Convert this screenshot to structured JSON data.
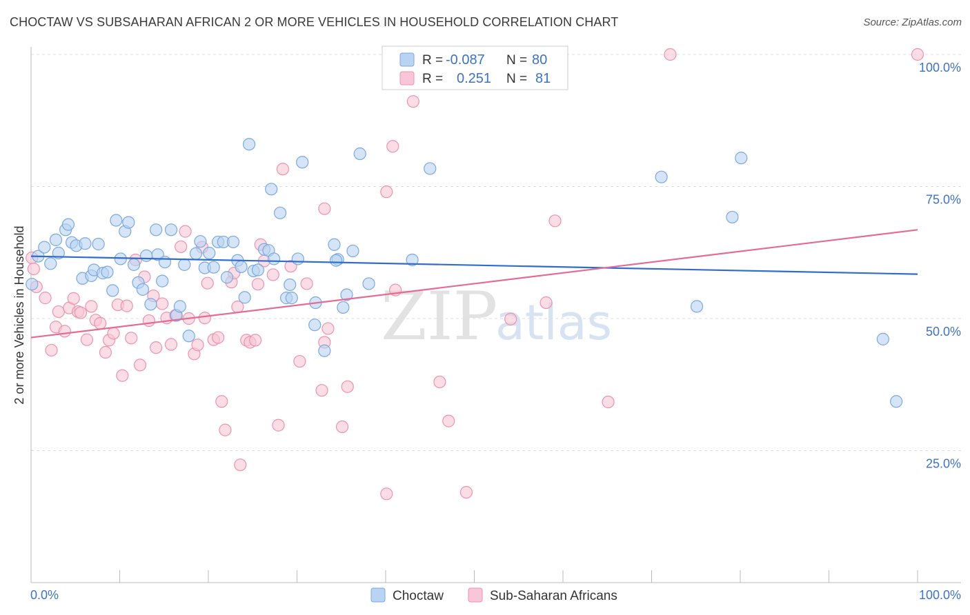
{
  "title": "CHOCTAW VS SUBSAHARAN AFRICAN 2 OR MORE VEHICLES IN HOUSEHOLD CORRELATION CHART",
  "source": "Source: ZipAtlas.com",
  "watermark": {
    "zip": "ZIP",
    "atlas": "atlas"
  },
  "colors": {
    "choctaw_fill": "#b9d3f2",
    "choctaw_stroke": "#7aa8df",
    "choctaw_line": "#2f6ccf",
    "ssa_fill": "#f8c6d6",
    "ssa_stroke": "#ec92b0",
    "ssa_line": "#e46b94",
    "grid": "#dddddd",
    "tick_text": "#3d72c4"
  },
  "legend_top": {
    "rows": [
      {
        "r_label": "R =",
        "r_value": "-0.087",
        "n_label": "N =",
        "n_value": "80"
      },
      {
        "r_label": "R =",
        "r_value": "0.251",
        "n_label": "N =",
        "n_value": "81"
      }
    ]
  },
  "legend_bottom": [
    "Choctaw",
    "Sub-Saharan Africans"
  ],
  "chart_data": {
    "type": "scatter",
    "title": "CHOCTAW VS SUBSAHARAN AFRICAN 2 OR MORE VEHICLES IN HOUSEHOLD CORRELATION CHART",
    "xlabel": "",
    "ylabel": "2 or more Vehicles in Household",
    "xlim": [
      0,
      100
    ],
    "ylim": [
      0,
      100
    ],
    "x_tick_labels": [
      "0.0%",
      "100.0%"
    ],
    "y_tick_labels": [
      "25.0%",
      "50.0%",
      "75.0%",
      "100.0%"
    ],
    "y_ticks": [
      25,
      50,
      75,
      100
    ],
    "grid": "horizontal dashed",
    "legend_position": "top-center",
    "series": [
      {
        "name": "Choctaw",
        "r": -0.087,
        "n": 80,
        "trend": {
          "y_at_x0": 61.8,
          "y_at_x100": 58.4
        },
        "points": [
          [
            0.1,
            56.5
          ],
          [
            0.8,
            61.8
          ],
          [
            1.5,
            63.5
          ],
          [
            2.2,
            60.4
          ],
          [
            2.8,
            64.9
          ],
          [
            3.1,
            62.4
          ],
          [
            3.9,
            66.8
          ],
          [
            4.2,
            67.8
          ],
          [
            4.6,
            64.4
          ],
          [
            5.1,
            63.8
          ],
          [
            5.8,
            57.6
          ],
          [
            6.1,
            64.2
          ],
          [
            6.8,
            58.1
          ],
          [
            7.1,
            59.2
          ],
          [
            7.6,
            64.1
          ],
          [
            8.1,
            58.6
          ],
          [
            8.6,
            58.8
          ],
          [
            9.2,
            55.3
          ],
          [
            9.6,
            68.6
          ],
          [
            10.1,
            61.3
          ],
          [
            10.6,
            66.5
          ],
          [
            11.0,
            68.2
          ],
          [
            11.6,
            60.2
          ],
          [
            12.1,
            56.8
          ],
          [
            12.6,
            55.5
          ],
          [
            13.0,
            61.9
          ],
          [
            13.5,
            52.7
          ],
          [
            14.1,
            66.8
          ],
          [
            14.3,
            62.1
          ],
          [
            14.8,
            57.1
          ],
          [
            15.1,
            60.7
          ],
          [
            15.8,
            66.8
          ],
          [
            16.4,
            50.6
          ],
          [
            16.8,
            52.3
          ],
          [
            17.3,
            60.2
          ],
          [
            17.8,
            46.7
          ],
          [
            18.6,
            62.3
          ],
          [
            19.1,
            64.6
          ],
          [
            19.6,
            59.6
          ],
          [
            20.1,
            62.4
          ],
          [
            20.6,
            59.7
          ],
          [
            21.1,
            64.5
          ],
          [
            21.7,
            64.5
          ],
          [
            22.1,
            57.8
          ],
          [
            22.8,
            64.5
          ],
          [
            23.3,
            61.0
          ],
          [
            23.7,
            59.8
          ],
          [
            24.1,
            54.0
          ],
          [
            24.6,
            83.0
          ],
          [
            25.1,
            59.0
          ],
          [
            25.6,
            59.2
          ],
          [
            26.3,
            63.1
          ],
          [
            26.8,
            62.9
          ],
          [
            27.4,
            61.3
          ],
          [
            27.1,
            74.5
          ],
          [
            28.1,
            70.0
          ],
          [
            28.8,
            53.9
          ],
          [
            29.4,
            53.9
          ],
          [
            29.2,
            56.4
          ],
          [
            30.1,
            61.3
          ],
          [
            30.6,
            79.6
          ],
          [
            32.1,
            53.0
          ],
          [
            32.0,
            48.8
          ],
          [
            33.1,
            43.9
          ],
          [
            34.2,
            64.0
          ],
          [
            34.6,
            61.2
          ],
          [
            35.2,
            52.1
          ],
          [
            35.6,
            54.5
          ],
          [
            36.3,
            62.8
          ],
          [
            37.1,
            81.2
          ],
          [
            38.1,
            56.6
          ],
          [
            43.0,
            61.1
          ],
          [
            45.0,
            78.4
          ],
          [
            71.1,
            76.8
          ],
          [
            75.1,
            52.3
          ],
          [
            79.1,
            69.2
          ],
          [
            80.1,
            80.4
          ],
          [
            96.1,
            46.1
          ],
          [
            97.6,
            34.3
          ],
          [
            34.4,
            61.0
          ]
        ]
      },
      {
        "name": "Sub-Saharan Africans",
        "r": 0.251,
        "n": 81,
        "trend": {
          "y_at_x0": 46.4,
          "y_at_x100": 66.8
        },
        "points": [
          [
            0.1,
            61.5
          ],
          [
            0.6,
            56.0
          ],
          [
            1.6,
            53.9
          ],
          [
            2.3,
            44.0
          ],
          [
            2.8,
            48.4
          ],
          [
            3.1,
            51.3
          ],
          [
            3.8,
            47.6
          ],
          [
            4.3,
            52.0
          ],
          [
            4.8,
            53.8
          ],
          [
            5.3,
            51.3
          ],
          [
            5.6,
            51.1
          ],
          [
            6.3,
            46.0
          ],
          [
            6.8,
            52.3
          ],
          [
            7.3,
            49.7
          ],
          [
            7.8,
            49.1
          ],
          [
            8.4,
            43.6
          ],
          [
            8.8,
            45.9
          ],
          [
            9.3,
            47.2
          ],
          [
            9.8,
            52.6
          ],
          [
            10.3,
            39.2
          ],
          [
            10.8,
            52.4
          ],
          [
            11.3,
            46.3
          ],
          [
            11.8,
            61.1
          ],
          [
            12.3,
            41.2
          ],
          [
            12.8,
            57.9
          ],
          [
            13.3,
            49.6
          ],
          [
            13.8,
            54.3
          ],
          [
            14.1,
            44.5
          ],
          [
            14.8,
            52.8
          ],
          [
            15.3,
            50.1
          ],
          [
            15.8,
            45.1
          ],
          [
            16.3,
            50.6
          ],
          [
            16.9,
            63.6
          ],
          [
            17.4,
            66.5
          ],
          [
            17.8,
            50.0
          ],
          [
            18.4,
            43.3
          ],
          [
            18.8,
            45.0
          ],
          [
            19.3,
            63.5
          ],
          [
            19.6,
            50.1
          ],
          [
            19.9,
            56.7
          ],
          [
            20.6,
            46.0
          ],
          [
            21.1,
            46.4
          ],
          [
            21.5,
            34.3
          ],
          [
            21.9,
            28.9
          ],
          [
            22.6,
            56.9
          ],
          [
            22.9,
            58.6
          ],
          [
            23.3,
            52.2
          ],
          [
            23.6,
            22.3
          ],
          [
            24.3,
            45.9
          ],
          [
            24.7,
            45.5
          ],
          [
            25.3,
            45.9
          ],
          [
            25.6,
            56.5
          ],
          [
            25.9,
            64.0
          ],
          [
            26.3,
            60.9
          ],
          [
            27.3,
            58.3
          ],
          [
            27.9,
            29.8
          ],
          [
            28.4,
            78.3
          ],
          [
            29.3,
            59.9
          ],
          [
            30.3,
            41.9
          ],
          [
            31.1,
            56.6
          ],
          [
            32.8,
            36.4
          ],
          [
            33.1,
            70.8
          ],
          [
            33.5,
            48.1
          ],
          [
            33.1,
            45.5
          ],
          [
            35.1,
            29.5
          ],
          [
            35.7,
            37.1
          ],
          [
            40.1,
            16.8
          ],
          [
            40.1,
            74.0
          ],
          [
            40.8,
            82.6
          ],
          [
            41.1,
            55.4
          ],
          [
            43.1,
            91.1
          ],
          [
            46.1,
            38.0
          ],
          [
            47.1,
            30.6
          ],
          [
            49.1,
            17.1
          ],
          [
            54.1,
            49.9
          ],
          [
            58.1,
            53.0
          ],
          [
            59.1,
            68.5
          ],
          [
            65.1,
            34.2
          ],
          [
            72.1,
            100.0
          ],
          [
            100.0,
            100.0
          ],
          [
            0.3,
            59.4
          ]
        ]
      }
    ]
  }
}
